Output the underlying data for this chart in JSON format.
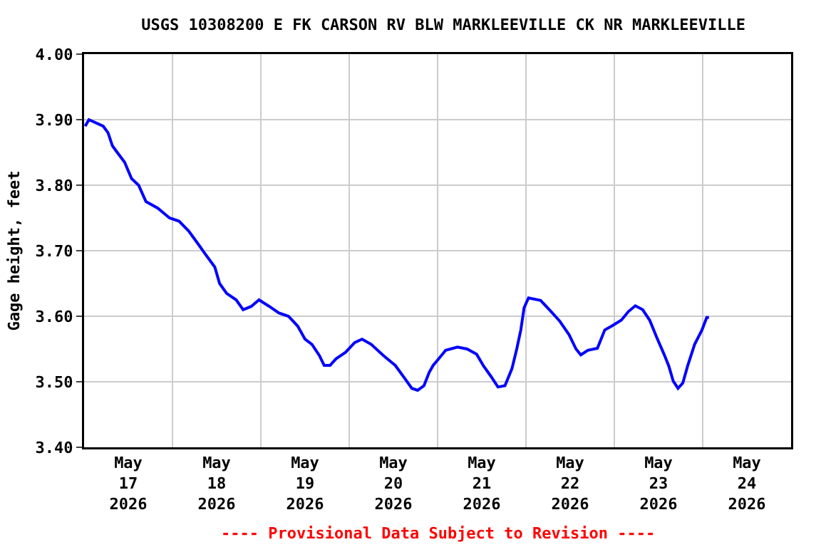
{
  "chart_data": {
    "type": "line",
    "title": "USGS 10308200 E FK CARSON RV BLW MARKLEEVILLE CK NR MARKLEEVILLE",
    "ylabel": "Gage height, feet",
    "annotations": [
      "---- Provisional Data Subject to Revision ----"
    ],
    "x": [
      "2026-05-17T00:18",
      "2026-05-17T01:18",
      "2026-05-17T05:12",
      "2026-05-17T06:30",
      "2026-05-17T07:42",
      "2026-05-17T09:00",
      "2026-05-17T11:00",
      "2026-05-17T12:54",
      "2026-05-17T14:48",
      "2026-05-17T16:48",
      "2026-05-17T20:00",
      "2026-05-17T23:12",
      "2026-05-18T01:48",
      "2026-05-18T04:24",
      "2026-05-18T07:00",
      "2026-05-18T08:54",
      "2026-05-18T11:30",
      "2026-05-18T12:48",
      "2026-05-18T14:42",
      "2026-05-18T17:18",
      "2026-05-18T19:12",
      "2026-05-18T21:24",
      "2026-05-18T23:30",
      "2026-05-19T02:18",
      "2026-05-19T04:54",
      "2026-05-19T07:30",
      "2026-05-19T10:00",
      "2026-05-19T12:00",
      "2026-05-19T13:54",
      "2026-05-19T15:54",
      "2026-05-19T17:12",
      "2026-05-19T18:48",
      "2026-05-19T20:24",
      "2026-05-19T23:00",
      "2026-05-20T01:30",
      "2026-05-20T03:30",
      "2026-05-20T06:00",
      "2026-05-20T09:18",
      "2026-05-20T12:30",
      "2026-05-20T15:06",
      "2026-05-20T17:00",
      "2026-05-20T18:36",
      "2026-05-20T20:18",
      "2026-05-20T21:42",
      "2026-05-20T22:48",
      "2026-05-21T00:18",
      "2026-05-21T02:12",
      "2026-05-21T05:24",
      "2026-05-21T08:00",
      "2026-05-21T10:36",
      "2026-05-21T12:30",
      "2026-05-21T14:24",
      "2026-05-21T16:24",
      "2026-05-21T18:18",
      "2026-05-21T20:12",
      "2026-05-21T21:30",
      "2026-05-21T22:36",
      "2026-05-21T23:30",
      "2026-05-22T00:42",
      "2026-05-22T04:00",
      "2026-05-22T06:30",
      "2026-05-22T09:06",
      "2026-05-22T11:42",
      "2026-05-22T13:36",
      "2026-05-22T14:54",
      "2026-05-22T16:48",
      "2026-05-22T19:24",
      "2026-05-22T21:24",
      "2026-05-22T23:18",
      "2026-05-23T01:54",
      "2026-05-23T03:48",
      "2026-05-23T05:42",
      "2026-05-23T07:42",
      "2026-05-23T09:36",
      "2026-05-23T11:30",
      "2026-05-23T13:30",
      "2026-05-23T14:48",
      "2026-05-23T16:00",
      "2026-05-23T17:18",
      "2026-05-23T18:36",
      "2026-05-23T19:54",
      "2026-05-23T21:48",
      "2026-05-23T23:48",
      "2026-05-24T01:06",
      "2026-05-24T01:42"
    ],
    "series": [
      {
        "color": "#0000ff",
        "values": [
          3.89,
          3.9,
          3.89,
          3.88,
          3.86,
          3.85,
          3.835,
          3.81,
          3.8,
          3.775,
          3.765,
          3.75,
          3.745,
          3.73,
          3.71,
          3.695,
          3.675,
          3.65,
          3.635,
          3.625,
          3.61,
          3.615,
          3.625,
          3.615,
          3.605,
          3.6,
          3.585,
          3.565,
          3.557,
          3.54,
          3.525,
          3.525,
          3.535,
          3.545,
          3.56,
          3.565,
          3.557,
          3.54,
          3.525,
          3.505,
          3.49,
          3.487,
          3.494,
          3.514,
          3.525,
          3.535,
          3.548,
          3.553,
          3.55,
          3.542,
          3.524,
          3.509,
          3.492,
          3.494,
          3.52,
          3.55,
          3.579,
          3.613,
          3.628,
          3.624,
          3.609,
          3.593,
          3.572,
          3.55,
          3.541,
          3.548,
          3.551,
          3.579,
          3.585,
          3.594,
          3.607,
          3.616,
          3.61,
          3.594,
          3.568,
          3.542,
          3.524,
          3.501,
          3.49,
          3.498,
          3.524,
          3.557,
          3.579,
          3.598,
          3.598
        ]
      }
    ],
    "xlim": [
      "2026-05-17",
      "2026-05-25"
    ],
    "xticks": [
      {
        "value": "2026-05-17",
        "label": null
      },
      {
        "value": "2026-05-17T12:00",
        "label": "May\n17\n2026"
      },
      {
        "value": "2026-05-18",
        "label": null
      },
      {
        "value": "2026-05-18T12:00",
        "label": "May\n18\n2026"
      },
      {
        "value": "2026-05-19",
        "label": null
      },
      {
        "value": "2026-05-19T12:00",
        "label": "May\n19\n2026"
      },
      {
        "value": "2026-05-20",
        "label": null
      },
      {
        "value": "2026-05-20T12:00",
        "label": "May\n20\n2026"
      },
      {
        "value": "2026-05-21",
        "label": null
      },
      {
        "value": "2026-05-21T12:00",
        "label": "May\n21\n2026"
      },
      {
        "value": "2026-05-22",
        "label": null
      },
      {
        "value": "2026-05-22T12:00",
        "label": "May\n22\n2026"
      },
      {
        "value": "2026-05-23",
        "label": null
      },
      {
        "value": "2026-05-23T12:00",
        "label": "May\n23\n2026"
      },
      {
        "value": "2026-05-24",
        "label": null
      },
      {
        "value": "2026-05-24T12:00",
        "label": "May\n24\n2026"
      },
      {
        "value": "2026-05-25",
        "label": null
      }
    ],
    "ylim": [
      3.4,
      4.0
    ],
    "yticks": [
      {
        "value": 3.4,
        "label": "3.40"
      },
      {
        "value": 3.5,
        "label": "3.50"
      },
      {
        "value": 3.6,
        "label": "3.60"
      },
      {
        "value": 3.7,
        "label": "3.70"
      },
      {
        "value": 3.8,
        "label": "3.80"
      },
      {
        "value": 3.9,
        "label": "3.90"
      },
      {
        "value": 4.0,
        "label": "4.00"
      }
    ],
    "grid": true,
    "marker": "none",
    "line_style": "solid"
  }
}
